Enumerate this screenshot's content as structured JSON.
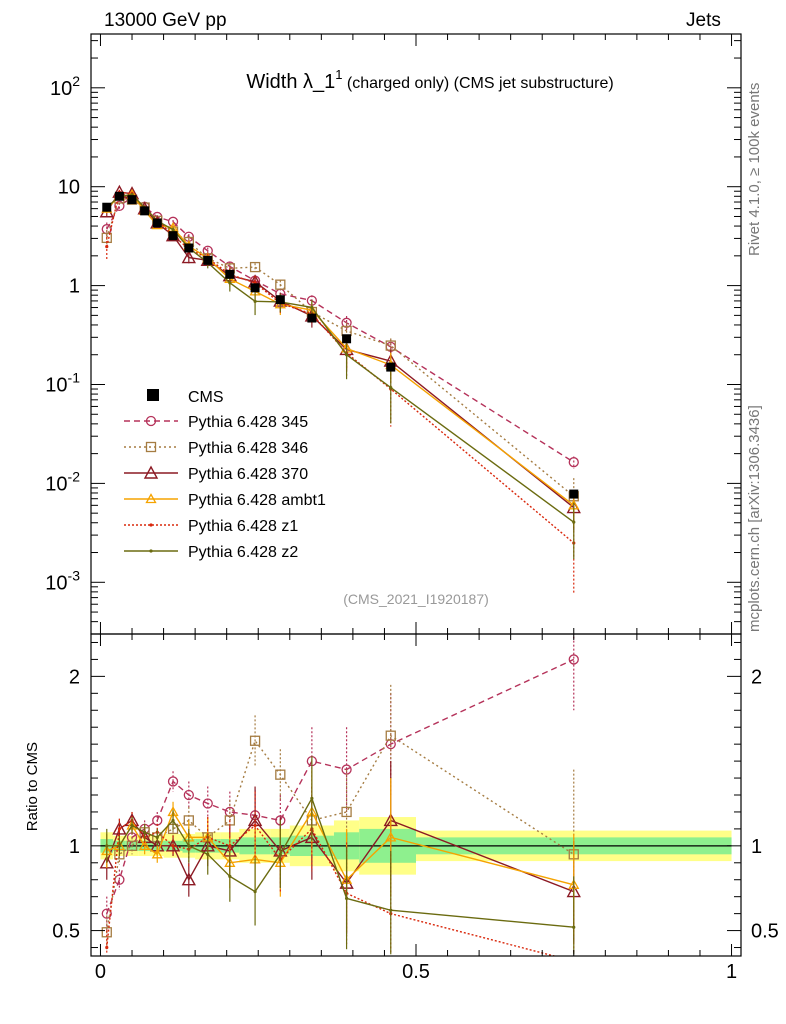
{
  "header": {
    "left": "13000 GeV pp",
    "right": "Jets"
  },
  "side": {
    "rivet": "Rivet 4.1.0, ≥ 100k events",
    "mcplots": "mcplots.cern.ch [arXiv:1306.3436]"
  },
  "chart_data": {
    "type": "line",
    "title_main": "Width λ_1",
    "title_sup": "1",
    "title_rest": "(charged only) (CMS jet substructure)",
    "analysis_id": "(CMS_2021_I1920187)",
    "main_panel": {
      "y_scale": "log",
      "ylim": [
        0.0003,
        350
      ],
      "y_tick_labels": [
        {
          "base": "10",
          "exp": "-3",
          "value": 0.001
        },
        {
          "base": "10",
          "exp": "-2",
          "value": 0.01
        },
        {
          "base": "10",
          "exp": "-1",
          "value": 0.1
        },
        {
          "base": "1",
          "exp": "",
          "value": 1
        },
        {
          "base": "10",
          "exp": "",
          "value": 10
        },
        {
          "base": "10",
          "exp": "2",
          "value": 100
        }
      ]
    },
    "ratio_panel": {
      "ylabel": "Ratio to CMS",
      "ylim": [
        0.35,
        2.25
      ],
      "y_tick_labels": [
        "0.5",
        "1",
        "2"
      ],
      "y_tick_values": [
        0.5,
        1,
        2
      ]
    },
    "x_axis": {
      "xlim": [
        -0.015,
        1.015
      ],
      "x_tick_labels": [
        "0",
        "0.5",
        "1"
      ],
      "x_tick_values": [
        0,
        0.5,
        1
      ]
    },
    "x": [
      0.01,
      0.03,
      0.05,
      0.07,
      0.09,
      0.115,
      0.14,
      0.17,
      0.205,
      0.245,
      0.285,
      0.335,
      0.39,
      0.46,
      0.75
    ],
    "x_edges": [
      0,
      0.02,
      0.04,
      0.06,
      0.08,
      0.1,
      0.13,
      0.15,
      0.19,
      0.22,
      0.27,
      0.3,
      0.37,
      0.41,
      0.5,
      1.0
    ],
    "data": {
      "name": "CMS",
      "values": [
        6.2,
        8.0,
        7.4,
        5.7,
        4.3,
        3.2,
        2.4,
        1.8,
        1.3,
        0.95,
        0.72,
        0.47,
        0.29,
        0.15,
        0.0078
      ],
      "band_stat": [
        0.04,
        0.03,
        0.03,
        0.03,
        0.03,
        0.03,
        0.04,
        0.04,
        0.04,
        0.05,
        0.05,
        0.06,
        0.08,
        0.1,
        0.05
      ],
      "band_total": [
        0.08,
        0.06,
        0.06,
        0.06,
        0.06,
        0.07,
        0.07,
        0.08,
        0.08,
        0.1,
        0.1,
        0.12,
        0.15,
        0.17,
        0.09
      ]
    },
    "series": [
      {
        "name": "Pythia 6.428 345",
        "color": "#b5325a",
        "marker": "circle",
        "dash": "6,4",
        "ratio": [
          0.6,
          0.8,
          1.05,
          1.1,
          1.15,
          1.38,
          1.3,
          1.25,
          1.2,
          1.18,
          1.15,
          1.5,
          1.45,
          1.6,
          2.1
        ],
        "ratio_err": [
          0.1,
          0.06,
          0.05,
          0.05,
          0.05,
          0.06,
          0.08,
          0.1,
          0.12,
          0.15,
          0.15,
          0.2,
          0.25,
          0.3,
          0.3
        ]
      },
      {
        "name": "Pythia 6.428 346",
        "color": "#a57c42",
        "marker": "square",
        "dash": "2,3",
        "ratio": [
          0.49,
          0.95,
          1.0,
          1.08,
          1.05,
          1.1,
          1.15,
          1.05,
          1.15,
          1.62,
          1.42,
          1.15,
          1.2,
          1.65,
          0.95
        ],
        "ratio_err": [
          0.1,
          0.06,
          0.05,
          0.05,
          0.05,
          0.06,
          0.08,
          0.1,
          0.12,
          0.15,
          0.15,
          0.2,
          0.25,
          0.3,
          0.5
        ]
      },
      {
        "name": "Pythia 6.428 370",
        "color": "#8c1a24",
        "marker": "triangle",
        "dash": "",
        "ratio": [
          0.9,
          1.1,
          1.15,
          1.05,
          1.0,
          1.0,
          0.8,
          1.0,
          0.97,
          1.15,
          0.97,
          1.05,
          0.78,
          1.15,
          0.73
        ],
        "ratio_err": [
          0.1,
          0.06,
          0.05,
          0.05,
          0.05,
          0.06,
          0.1,
          0.12,
          0.15,
          0.2,
          0.2,
          0.25,
          0.3,
          0.35,
          0.3
        ]
      },
      {
        "name": "Pythia 6.428 ambt1",
        "color": "#f5a300",
        "marker": "triangle-small",
        "dash": "",
        "ratio": [
          0.97,
          1.0,
          1.12,
          1.0,
          0.95,
          1.2,
          1.05,
          1.05,
          0.9,
          0.92,
          0.9,
          1.2,
          0.8,
          1.05,
          0.77
        ],
        "ratio_err": [
          0.1,
          0.06,
          0.05,
          0.05,
          0.05,
          0.06,
          0.1,
          0.12,
          0.15,
          0.2,
          0.2,
          0.25,
          0.3,
          0.35,
          0.3
        ]
      },
      {
        "name": "Pythia 6.428 z1",
        "color": "#d9280c",
        "marker": "dot",
        "dash": "2,2",
        "ratio": [
          0.4,
          1.1,
          1.15,
          1.05,
          1.08,
          1.0,
          0.98,
          1.05,
          1.0,
          1.12,
          0.92,
          1.1,
          0.72,
          0.6,
          0.32
        ],
        "ratio_err": [
          0.1,
          0.06,
          0.05,
          0.05,
          0.05,
          0.06,
          0.1,
          0.12,
          0.15,
          0.2,
          0.2,
          0.25,
          0.3,
          0.35,
          0.3
        ]
      },
      {
        "name": "Pythia 6.428 z2",
        "color": "#6b6b10",
        "marker": "dot",
        "dash": "",
        "ratio": [
          1.0,
          1.0,
          1.12,
          1.08,
          1.05,
          1.15,
          1.0,
          0.95,
          0.82,
          0.73,
          0.95,
          1.28,
          0.69,
          0.62,
          0.52
        ],
        "ratio_err": [
          0.1,
          0.06,
          0.05,
          0.05,
          0.05,
          0.06,
          0.1,
          0.12,
          0.15,
          0.2,
          0.2,
          0.25,
          0.3,
          0.35,
          0.3
        ]
      }
    ]
  }
}
